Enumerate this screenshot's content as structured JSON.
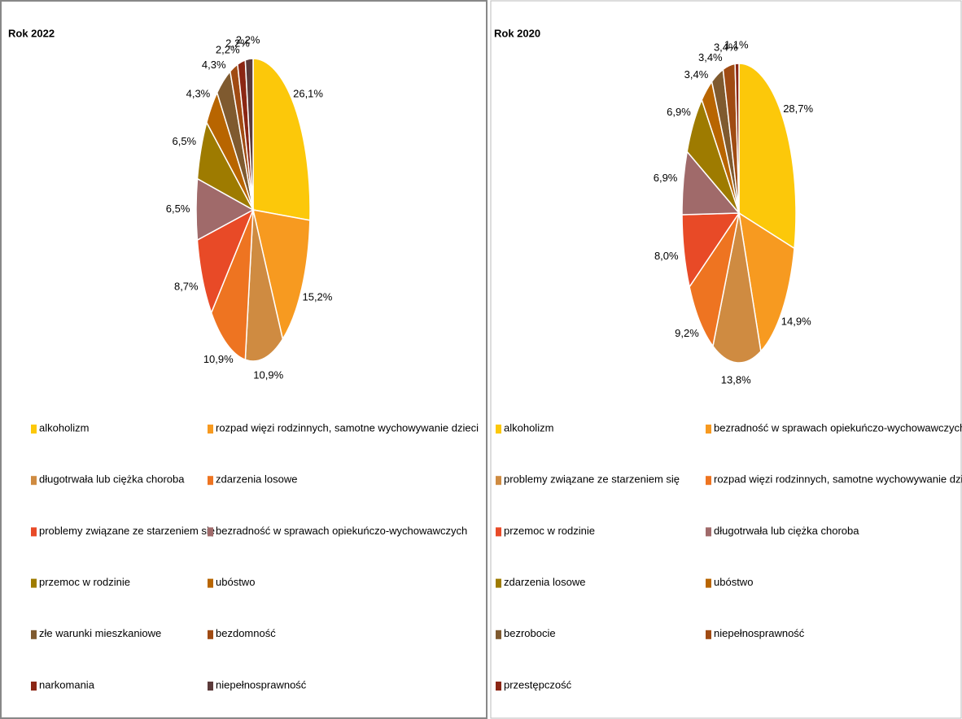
{
  "chart_data": [
    {
      "type": "pie",
      "title": "Rok 2022",
      "categories": [
        "alkoholizm",
        "rozpad więzi rodzinnych, samotne wychowywanie dzieci",
        "długotrwała lub ciężka choroba",
        "zdarzenia losowe",
        "problemy związane ze starzeniem się",
        "bezradność w sprawach opiekuńczo-wychowawczych",
        "przemoc w rodzinie",
        "ubóstwo",
        "złe warunki mieszkaniowe",
        "bezdomność",
        "narkomania",
        "niepełnosprawność"
      ],
      "values": [
        26.1,
        15.2,
        10.9,
        10.9,
        8.7,
        6.5,
        6.5,
        4.3,
        4.3,
        2.2,
        2.2,
        2.2
      ],
      "value_labels": [
        "26,1%",
        "15,2%",
        "10,9%",
        "10,9%",
        "8,7%",
        "6,5%",
        "6,5%",
        "4,3%",
        "4,3%",
        "2,2%",
        "2,2%",
        "2,2%"
      ],
      "colors": [
        "#fcc80a",
        "#f79a20",
        "#cf8b41",
        "#ee7421",
        "#e84a27",
        "#a06a6a",
        "#9e7b00",
        "#b86500",
        "#7f5a2f",
        "#a04b13",
        "#8b2614",
        "#5b3a3a"
      ],
      "legend": "bottom"
    },
    {
      "type": "pie",
      "title": "Rok 2020",
      "categories": [
        "alkoholizm",
        "bezradność w sprawach opiekuńczo-wychowawczych",
        "problemy związane ze starzeniem się",
        "rozpad więzi rodzinnych, samotne wychowywanie dzieci",
        "przemoc w rodzinie",
        "długotrwała lub ciężka choroba",
        "zdarzenia losowe",
        "ubóstwo",
        "bezrobocie",
        "niepełnosprawność",
        "przestępczość"
      ],
      "values": [
        28.7,
        14.9,
        13.8,
        9.2,
        8.0,
        6.9,
        6.9,
        3.4,
        3.4,
        3.4,
        1.1
      ],
      "value_labels": [
        "28,7%",
        "14,9%",
        "13,8%",
        "9,2%",
        "8,0%",
        "6,9%",
        "6,9%",
        "3,4%",
        "3,4%",
        "3,4%",
        "1,1%"
      ],
      "colors": [
        "#fcc80a",
        "#f79a20",
        "#cf8b41",
        "#ee7421",
        "#e84a27",
        "#a06a6a",
        "#9e7b00",
        "#b86500",
        "#7f5a2f",
        "#a04b13",
        "#8b2614"
      ],
      "legend": "bottom"
    }
  ]
}
